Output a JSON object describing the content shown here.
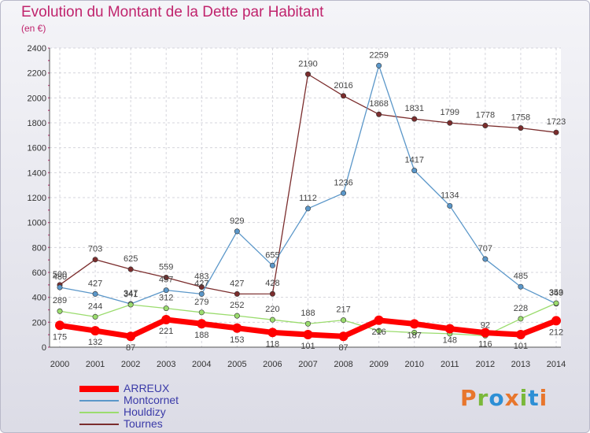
{
  "title": "Evolution du Montant de la Dette par Habitant",
  "subtitle": "(en €)",
  "logo": {
    "text": "Proxiti",
    "colors": [
      "#e8762c",
      "#7ab83a",
      "#2d8fd5"
    ]
  },
  "chart_data": {
    "type": "line",
    "title": "Evolution du Montant de la Dette par Habitant",
    "ylabel": "(en €)",
    "xlabel": "",
    "ylim": [
      0,
      2400
    ],
    "yticks": [
      0,
      200,
      400,
      600,
      800,
      1000,
      1200,
      1400,
      1600,
      1800,
      2000,
      2200,
      2400
    ],
    "grid": true,
    "legend_position": "bottom-left",
    "categories": [
      "2000",
      "2001",
      "2002",
      "2003",
      "2004",
      "2005",
      "2006",
      "2007",
      "2008",
      "2009",
      "2010",
      "2011",
      "2012",
      "2013",
      "2014"
    ],
    "series": [
      {
        "name": "ARREUX",
        "color": "#ff0000",
        "legend_color": "#3a3aa8",
        "values": [
          175,
          132,
          87,
          221,
          188,
          153,
          118,
          101,
          87,
          216,
          187,
          148,
          116,
          101,
          212
        ]
      },
      {
        "name": "Montcornet",
        "color": "#5b97c9",
        "legend_color": "#3a3aa8",
        "values": [
          480,
          427,
          347,
          457,
          427,
          929,
          655,
          1112,
          1236,
          2259,
          1417,
          1134,
          707,
          485,
          349
        ]
      },
      {
        "name": "Houldizy",
        "color": "#9bdc6e",
        "legend_color": "#3a3aa8",
        "values": [
          289,
          244,
          341,
          312,
          279,
          252,
          220,
          188,
          217,
          131,
          117,
          108,
          92,
          228,
          353
        ]
      },
      {
        "name": "Tournes",
        "color": "#7b2d2d",
        "legend_color": "#3a3aa8",
        "values": [
          500,
          703,
          625,
          559,
          483,
          427,
          428,
          2190,
          2016,
          1868,
          1831,
          1799,
          1778,
          1758,
          1723
        ]
      }
    ],
    "data_labels": [
      [
        "175",
        "132",
        "87",
        "221",
        "188",
        "153",
        "118",
        "101",
        "87",
        "216",
        "187",
        "148",
        "116",
        "101",
        "212"
      ],
      [
        "480",
        "427",
        "347",
        "457",
        "427",
        "929",
        "655",
        "1112",
        "1236",
        "2259",
        "1417",
        "1134",
        "707",
        "485",
        "349"
      ],
      [
        "289",
        "244",
        "341",
        "312",
        "279",
        "252",
        "220",
        "188",
        "217",
        "",
        "",
        "",
        "92",
        "228",
        "353"
      ],
      [
        "500",
        "703",
        "625",
        "559",
        "483",
        "427",
        "428",
        "2190",
        "2016",
        "1868",
        "1831",
        "1799",
        "1778",
        "1758",
        "1723"
      ]
    ]
  }
}
